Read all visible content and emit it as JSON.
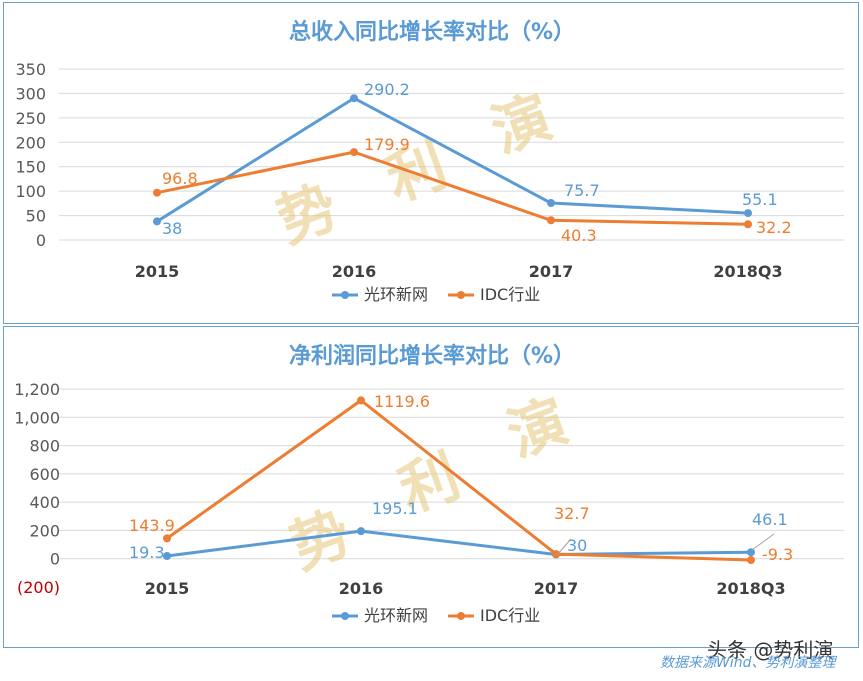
{
  "chart_data": [
    {
      "type": "line",
      "title": "总收入同比增长率对比（%）",
      "categories": [
        "2015",
        "2016",
        "2017",
        "2018Q3"
      ],
      "series": [
        {
          "name": "光环新网",
          "color": "#5b9bd5",
          "values": [
            38,
            290.2,
            75.7,
            55.1
          ]
        },
        {
          "name": "IDC行业",
          "color": "#ed7d31",
          "values": [
            96.8,
            179.9,
            40.3,
            32.2
          ]
        }
      ],
      "yticks": [
        "350",
        "300",
        "250",
        "200",
        "150",
        "100",
        "50",
        "0"
      ],
      "ylim": [
        0,
        350
      ],
      "grid": true,
      "legend": "bottom"
    },
    {
      "type": "line",
      "title": "净利润同比增长率对比（%）",
      "categories": [
        "2015",
        "2016",
        "2017",
        "2018Q3"
      ],
      "series": [
        {
          "name": "光环新网",
          "color": "#5b9bd5",
          "values": [
            19.3,
            195.1,
            30,
            46.1
          ]
        },
        {
          "name": "IDC行业",
          "color": "#ed7d31",
          "values": [
            143.9,
            1119.6,
            32.7,
            -9.3
          ]
        }
      ],
      "yticks": [
        "1,200",
        "1,000",
        "800",
        "600",
        "400",
        "200",
        "0",
        "(200)"
      ],
      "ylim": [
        -200,
        1200
      ],
      "grid": true,
      "legend": "bottom"
    }
  ],
  "watermark": [
    "势",
    "利",
    "演"
  ],
  "footer": {
    "brand": "头条 @势利演",
    "source": "数据来源Wind、势利演整理"
  }
}
